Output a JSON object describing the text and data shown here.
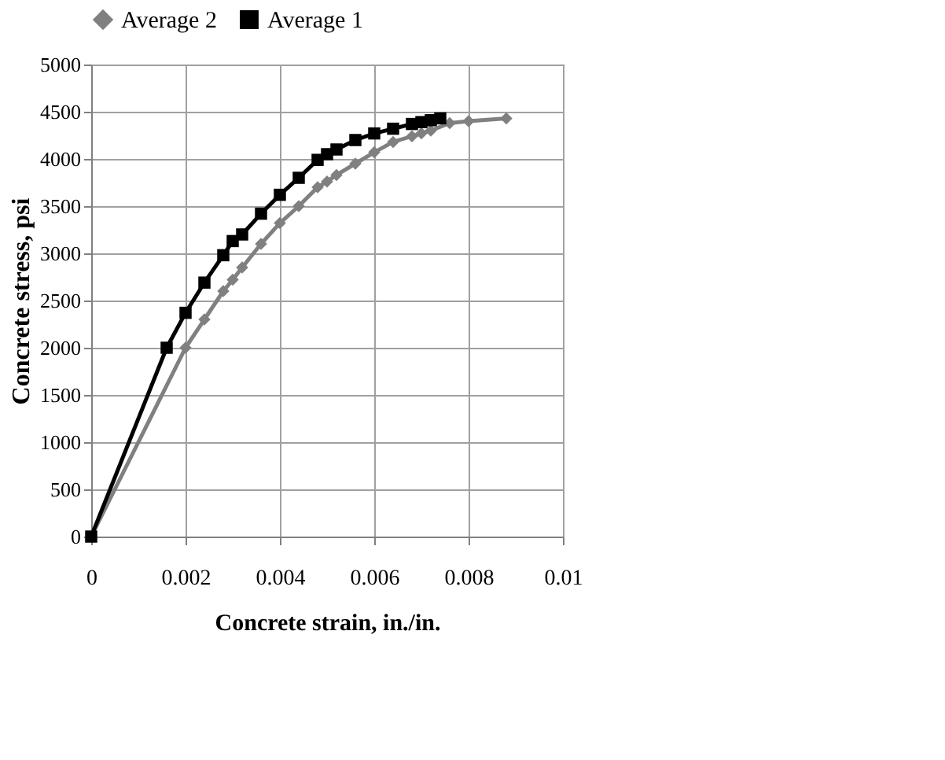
{
  "chart_data": {
    "type": "line",
    "xlabel": "Concrete strain, in./in.",
    "ylabel": "Concrete stress, psi",
    "xlim": [
      0,
      0.01
    ],
    "xticks": [
      0,
      0.002,
      0.004,
      0.006,
      0.008,
      0.01
    ],
    "ylim": [
      0,
      5000
    ],
    "yticks": [
      0,
      500,
      1000,
      1500,
      2000,
      2500,
      3000,
      3500,
      4000,
      4500,
      5000
    ],
    "grid": true,
    "legend": "top",
    "line_style": "solid",
    "series": [
      {
        "name": "Average 2",
        "color": "#808080",
        "marker": "diamond",
        "x": [
          0,
          0.002,
          0.0024,
          0.0028,
          0.003,
          0.0032,
          0.0036,
          0.004,
          0.0044,
          0.0048,
          0.005,
          0.0052,
          0.0056,
          0.006,
          0.0064,
          0.0068,
          0.007,
          0.0072,
          0.0076,
          0.008,
          0.0088
        ],
        "values": [
          0,
          2000,
          2300,
          2600,
          2720,
          2850,
          3100,
          3320,
          3500,
          3700,
          3760,
          3830,
          3950,
          4070,
          4180,
          4240,
          4270,
          4300,
          4380,
          4400,
          4430
        ]
      },
      {
        "name": "Average 1",
        "color": "#000000",
        "marker": "square",
        "x": [
          0,
          0.0016,
          0.002,
          0.0024,
          0.0028,
          0.003,
          0.0032,
          0.0036,
          0.004,
          0.0044,
          0.0048,
          0.005,
          0.0052,
          0.0056,
          0.006,
          0.0064,
          0.0068,
          0.007,
          0.0072,
          0.0074
        ],
        "values": [
          0,
          2000,
          2370,
          2690,
          2980,
          3130,
          3200,
          3420,
          3620,
          3800,
          3990,
          4050,
          4100,
          4200,
          4270,
          4320,
          4370,
          4390,
          4410,
          4430
        ]
      }
    ]
  }
}
